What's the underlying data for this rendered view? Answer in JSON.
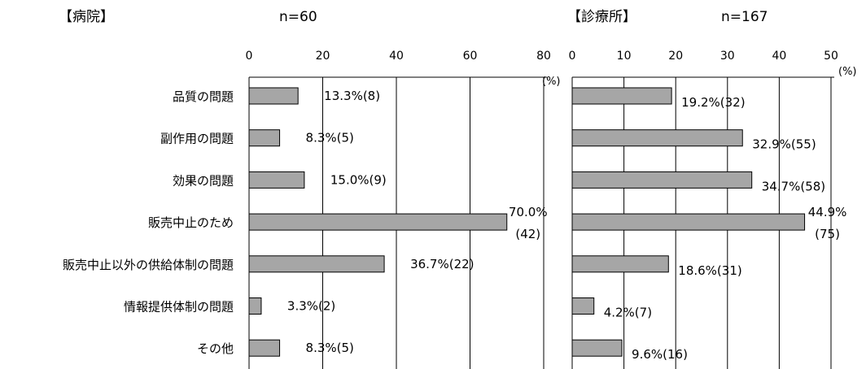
{
  "categories": [
    "品質の問題",
    "副作用の問題",
    "効果の問題",
    "販売中止のため",
    "販売中止以外の供給体制の問題",
    "情報提供体制の問題",
    "その他"
  ],
  "colors": {
    "bar": "#a6a6a6",
    "bar_stroke": "#000000",
    "grid": "#000000"
  },
  "chart_data": [
    {
      "type": "bar",
      "orientation": "horizontal",
      "title": "【病院】",
      "subtitle": "n=60",
      "unit_label": "(%)",
      "xlim": [
        0,
        80
      ],
      "ticks": [
        0,
        20,
        40,
        60,
        80
      ],
      "grid": true,
      "values": [
        13.3,
        8.3,
        15.0,
        70.0,
        36.7,
        3.3,
        8.3
      ],
      "labels": [
        "13.3%(8)",
        "8.3%(5)",
        "15.0%(9)",
        [
          "70.0%",
          "(42)"
        ],
        "36.7%(22)",
        "3.3%(2)",
        "8.3%(5)"
      ]
    },
    {
      "type": "bar",
      "orientation": "horizontal",
      "title": "【診療所】",
      "subtitle": "n=167",
      "unit_label": "(%)",
      "xlim": [
        0,
        50
      ],
      "ticks": [
        0,
        10,
        20,
        30,
        40,
        50
      ],
      "grid": true,
      "values": [
        19.2,
        32.9,
        34.7,
        44.9,
        18.6,
        4.2,
        9.6
      ],
      "labels": [
        "19.2%(32)",
        "32.9%(55)",
        "34.7%(58)",
        [
          "44.9%",
          "(75)"
        ],
        "18.6%(31)",
        "4.2%(7)",
        "9.6%(16)"
      ]
    }
  ]
}
